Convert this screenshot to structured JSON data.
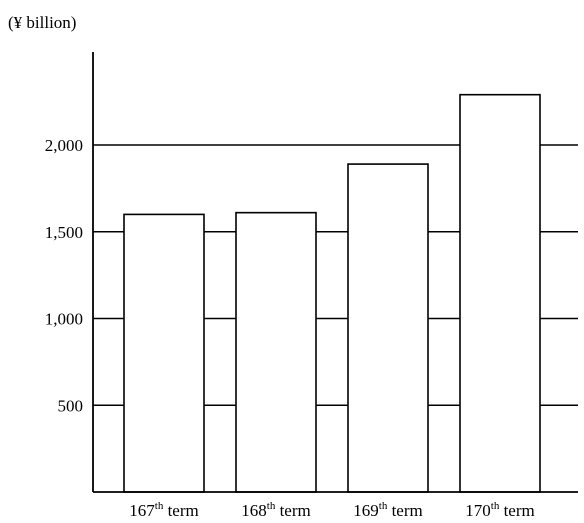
{
  "chart_data": {
    "type": "bar",
    "unit_label": "(¥ billion)",
    "categories": [
      {
        "num": "167",
        "sup": "th",
        "word": " term"
      },
      {
        "num": "168",
        "sup": "th",
        "word": " term"
      },
      {
        "num": "169",
        "sup": "th",
        "word": " term"
      },
      {
        "num": "170",
        "sup": "th",
        "word": " term"
      }
    ],
    "values": [
      1600,
      1610,
      1890,
      2290
    ],
    "yticks": [
      {
        "value": 500,
        "label": "500"
      },
      {
        "value": 1000,
        "label": "1,000"
      },
      {
        "value": 1500,
        "label": "1,500"
      },
      {
        "value": 2000,
        "label": "2,000"
      }
    ],
    "ylim": [
      0,
      2500
    ],
    "xlabel": "",
    "ylabel": "",
    "grid": true,
    "colors": {
      "bar_fill": "#ffffff",
      "bar_stroke": "#000000",
      "axis": "#000000",
      "grid": "#000000"
    }
  }
}
